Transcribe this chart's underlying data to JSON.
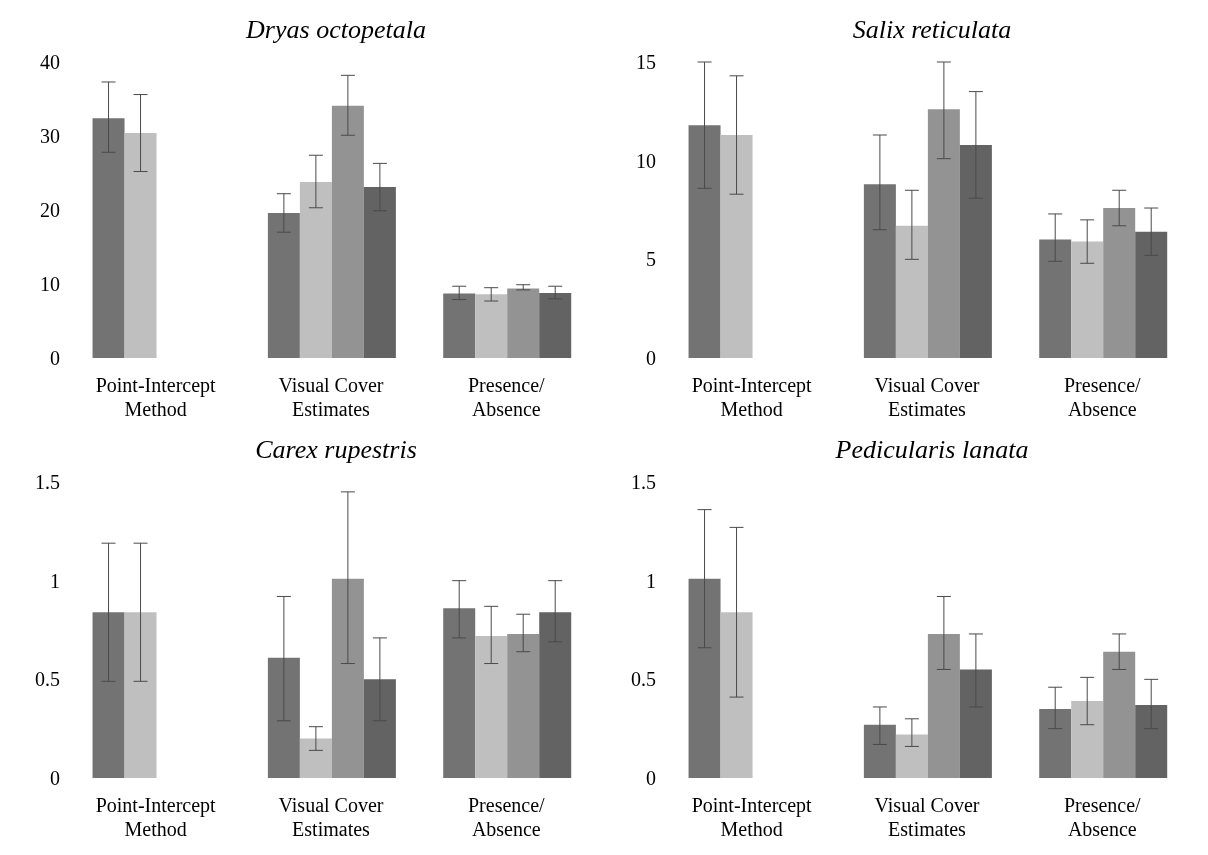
{
  "chart_data": [
    {
      "type": "bar",
      "title": "Dryas octopetala",
      "categories": [
        "Point-Intercept Method",
        "Visual Cover Estimates",
        "Presence/Absence"
      ],
      "ylim": [
        0,
        40
      ],
      "yticks": [
        0,
        10,
        20,
        30,
        40
      ],
      "grid": false,
      "legend": false,
      "series": [
        {
          "color": "#737373",
          "values": [
            32.4,
            19.6,
            8.7
          ],
          "errors": [
            [
              27.8,
              37.3
            ],
            [
              17.0,
              22.2
            ],
            [
              7.9,
              9.7
            ]
          ]
        },
        {
          "color": "#bfbfbf",
          "values": [
            30.4,
            23.8,
            8.6
          ],
          "errors": [
            [
              25.2,
              35.6
            ],
            [
              20.3,
              27.4
            ],
            [
              7.7,
              9.5
            ]
          ]
        },
        {
          "color": "#939393",
          "values": [
            null,
            34.1,
            9.4
          ],
          "errors": [
            null,
            [
              30.1,
              38.2
            ],
            [
              9.2,
              9.9
            ]
          ]
        },
        {
          "color": "#636363",
          "values": [
            null,
            23.1,
            8.8
          ],
          "errors": [
            null,
            [
              19.9,
              26.3
            ],
            [
              8.0,
              9.7
            ]
          ]
        }
      ]
    },
    {
      "type": "bar",
      "title": "Salix reticulata",
      "categories": [
        "Point-Intercept Method",
        "Visual Cover Estimates",
        "Presence/Absence"
      ],
      "ylim": [
        0,
        15
      ],
      "yticks": [
        0,
        5,
        10,
        15
      ],
      "grid": false,
      "legend": false,
      "series": [
        {
          "color": "#737373",
          "values": [
            11.8,
            8.8,
            6.0
          ],
          "errors": [
            [
              8.6,
              15.0
            ],
            [
              6.5,
              11.3
            ],
            [
              4.9,
              7.3
            ]
          ]
        },
        {
          "color": "#bfbfbf",
          "values": [
            11.3,
            6.7,
            5.9
          ],
          "errors": [
            [
              8.3,
              14.3
            ],
            [
              5.0,
              8.5
            ],
            [
              4.8,
              7.0
            ]
          ]
        },
        {
          "color": "#939393",
          "values": [
            null,
            12.6,
            7.6
          ],
          "errors": [
            null,
            [
              10.1,
              15.0
            ],
            [
              6.7,
              8.5
            ]
          ]
        },
        {
          "color": "#636363",
          "values": [
            null,
            10.8,
            6.4
          ],
          "errors": [
            null,
            [
              8.1,
              13.5
            ],
            [
              5.2,
              7.6
            ]
          ]
        }
      ]
    },
    {
      "type": "bar",
      "title": "Carex rupestris",
      "categories": [
        "Point-Intercept Method",
        "Visual Cover Estimates",
        "Presence/Absence"
      ],
      "ylim": [
        0,
        1.5
      ],
      "yticks": [
        0,
        0.5,
        1,
        1.5
      ],
      "grid": false,
      "legend": false,
      "series": [
        {
          "color": "#737373",
          "values": [
            0.84,
            0.61,
            0.86
          ],
          "errors": [
            [
              0.49,
              1.19
            ],
            [
              0.29,
              0.92
            ],
            [
              0.71,
              1.0
            ]
          ]
        },
        {
          "color": "#bfbfbf",
          "values": [
            0.84,
            0.2,
            0.72
          ],
          "errors": [
            [
              0.49,
              1.19
            ],
            [
              0.14,
              0.26
            ],
            [
              0.58,
              0.87
            ]
          ]
        },
        {
          "color": "#939393",
          "values": [
            null,
            1.01,
            0.73
          ],
          "errors": [
            null,
            [
              0.58,
              1.45
            ],
            [
              0.64,
              0.83
            ]
          ]
        },
        {
          "color": "#636363",
          "values": [
            null,
            0.5,
            0.84
          ],
          "errors": [
            null,
            [
              0.29,
              0.71
            ],
            [
              0.69,
              1.0
            ]
          ]
        }
      ]
    },
    {
      "type": "bar",
      "title": "Pedicularis lanata",
      "categories": [
        "Point-Intercept Method",
        "Visual Cover Estimates",
        "Presence/Absence"
      ],
      "ylim": [
        0,
        1.5
      ],
      "yticks": [
        0,
        0.5,
        1,
        1.5
      ],
      "grid": false,
      "legend": false,
      "series": [
        {
          "color": "#737373",
          "values": [
            1.01,
            0.27,
            0.35
          ],
          "errors": [
            [
              0.66,
              1.36
            ],
            [
              0.17,
              0.36
            ],
            [
              0.25,
              0.46
            ]
          ]
        },
        {
          "color": "#bfbfbf",
          "values": [
            0.84,
            0.22,
            0.39
          ],
          "errors": [
            [
              0.41,
              1.27
            ],
            [
              0.16,
              0.3
            ],
            [
              0.27,
              0.51
            ]
          ]
        },
        {
          "color": "#939393",
          "values": [
            null,
            0.73,
            0.64
          ],
          "errors": [
            null,
            [
              0.55,
              0.92
            ],
            [
              0.55,
              0.73
            ]
          ]
        },
        {
          "color": "#636363",
          "values": [
            null,
            0.55,
            0.37
          ],
          "errors": [
            null,
            [
              0.36,
              0.73
            ],
            [
              0.25,
              0.5
            ]
          ]
        }
      ]
    }
  ]
}
